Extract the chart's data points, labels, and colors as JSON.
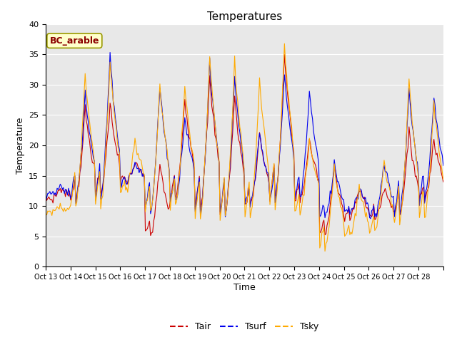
{
  "title": "Temperatures",
  "xlabel": "Time",
  "ylabel": "Temperature",
  "ylim": [
    0,
    40
  ],
  "annotation": "BC_arable",
  "legend_labels": [
    "Tair",
    "Tsurf",
    "Tsky"
  ],
  "line_colors": [
    "#cc0000",
    "#0000ee",
    "#ffaa00"
  ],
  "background_color": "#e8e8e8",
  "num_days": 16,
  "points_per_day": 24,
  "yticks": [
    0,
    5,
    10,
    15,
    20,
    25,
    30,
    35,
    40
  ],
  "daily_peaks_tair": [
    13,
    26,
    27,
    17,
    17,
    28,
    31,
    28,
    22,
    35,
    21,
    17,
    13,
    13,
    22,
    21
  ],
  "daily_peaks_tsurf": [
    13,
    29,
    35,
    17,
    30,
    25,
    34,
    31,
    22,
    32,
    29,
    17,
    13,
    17,
    29,
    28
  ],
  "daily_peaks_tsky": [
    10,
    32,
    34,
    21,
    30,
    30,
    35,
    34,
    31,
    37,
    21,
    17,
    13,
    17,
    31,
    27
  ],
  "daily_mins_tair": [
    11,
    11,
    12,
    14,
    5,
    11,
    10,
    9,
    10,
    11,
    11,
    5,
    8,
    8,
    9,
    11
  ],
  "daily_mins_tsurf": [
    12,
    11,
    11,
    14,
    9,
    11,
    9,
    9,
    10,
    11,
    11,
    8,
    9,
    8,
    9,
    11
  ],
  "daily_mins_tsky": [
    9,
    10,
    10,
    12,
    9,
    10,
    8,
    8,
    8,
    10,
    9,
    3,
    5,
    6,
    7,
    8
  ]
}
